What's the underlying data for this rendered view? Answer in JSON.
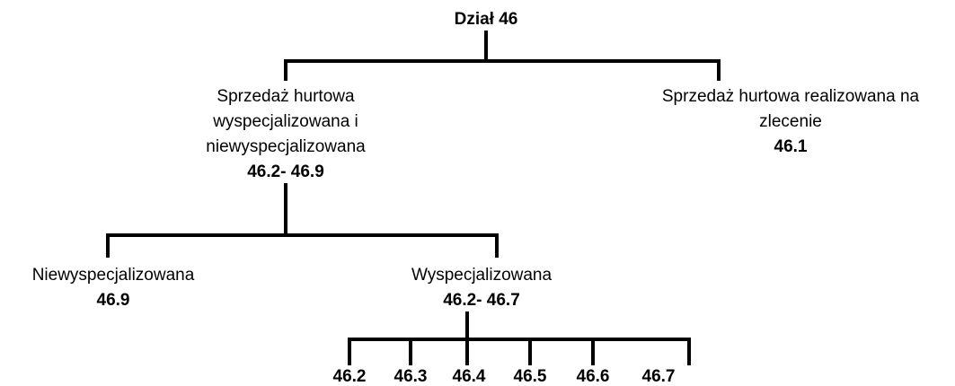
{
  "root": {
    "label": "Dział 46"
  },
  "nodes": [
    {
      "label_lines": [
        "Sprzedaż hurtowa",
        "wyspecjalizowana i",
        "niewyspecjalizowana"
      ],
      "code": "46.2- 46.9"
    },
    {
      "label_lines": [
        "Sprzedaż hurtowa realizowana na",
        "zlecenie"
      ],
      "code": "46.1"
    },
    {
      "label_lines": [
        "Niewyspecjalizowana"
      ],
      "code": "46.9"
    },
    {
      "label_lines": [
        "Wyspecjalizowana"
      ],
      "code": "46.2- 46.7"
    }
  ],
  "leaves": [
    "46.2",
    "46.3",
    "46.4",
    "46.5",
    "46.6",
    "46.7"
  ]
}
